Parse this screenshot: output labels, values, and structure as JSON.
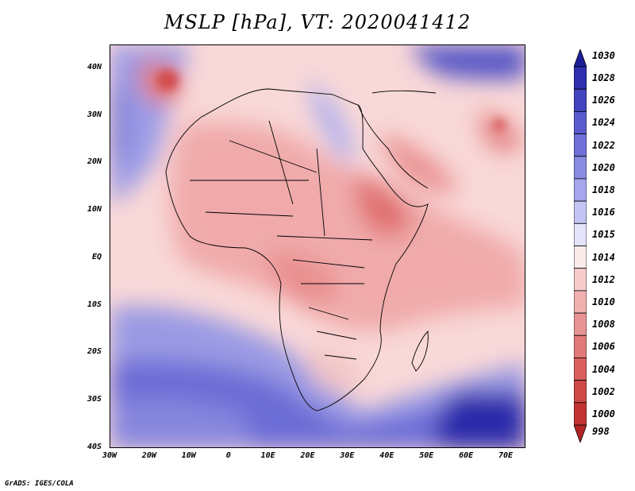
{
  "title": "MSLP [hPa], VT: 2020041412",
  "credit": "GrADS: IGES/COLA",
  "y_ticks": [
    {
      "label": "40N",
      "lat": 40
    },
    {
      "label": "30N",
      "lat": 30
    },
    {
      "label": "20N",
      "lat": 20
    },
    {
      "label": "10N",
      "lat": 10
    },
    {
      "label": "EQ",
      "lat": 0
    },
    {
      "label": "10S",
      "lat": -10
    },
    {
      "label": "20S",
      "lat": -20
    },
    {
      "label": "30S",
      "lat": -30
    },
    {
      "label": "40S",
      "lat": -40
    }
  ],
  "x_ticks": [
    {
      "label": "30W",
      "lon": -30
    },
    {
      "label": "20W",
      "lon": -20
    },
    {
      "label": "10W",
      "lon": -10
    },
    {
      "label": "0",
      "lon": 0
    },
    {
      "label": "10E",
      "lon": 10
    },
    {
      "label": "20E",
      "lon": 20
    },
    {
      "label": "30E",
      "lon": 30
    },
    {
      "label": "40E",
      "lon": 40
    },
    {
      "label": "50E",
      "lon": 50
    },
    {
      "label": "60E",
      "lon": 60
    },
    {
      "label": "70E",
      "lon": 70
    }
  ],
  "extent": {
    "lon_min": -30,
    "lon_max": 75,
    "lat_min": -40,
    "lat_max": 45
  },
  "colorbar": {
    "levels": [
      "1030",
      "1028",
      "1026",
      "1024",
      "1022",
      "1020",
      "1018",
      "1016",
      "1015",
      "1014",
      "1012",
      "1010",
      "1008",
      "1006",
      "1004",
      "1002",
      "1000",
      "998"
    ],
    "colors": [
      "#1e1e9a",
      "#2f2fb0",
      "#4444c0",
      "#5a5ace",
      "#7070d8",
      "#8a8ae2",
      "#a6a6ec",
      "#c4c4f4",
      "#e4e4fb",
      "#fbeaea",
      "#f6cccc",
      "#f0b0b0",
      "#e99494",
      "#e27a7a",
      "#da6060",
      "#d04848",
      "#c23434",
      "#b02424"
    ]
  }
}
